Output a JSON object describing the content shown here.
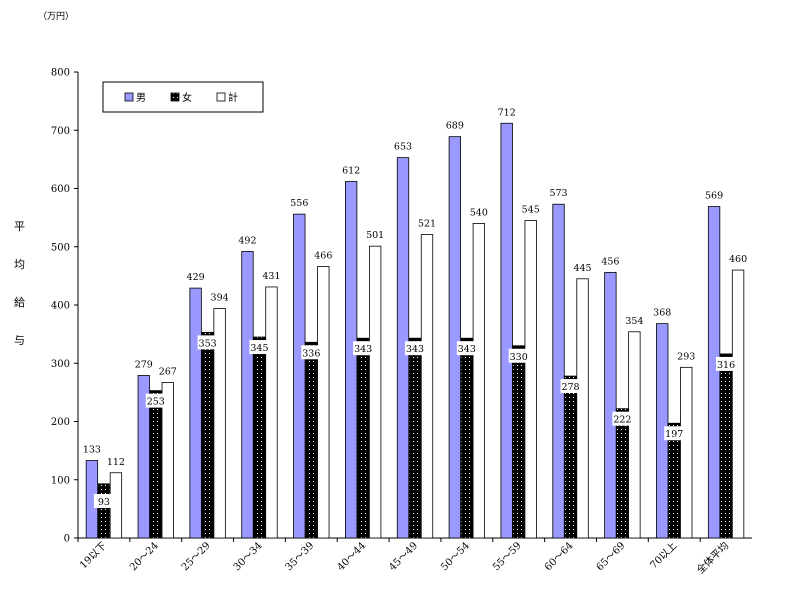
{
  "chart_data": {
    "type": "bar",
    "unit_label": "（万円）",
    "ylabel": "平均給与",
    "ylim": [
      0,
      800
    ],
    "yticks": [
      0,
      100,
      200,
      300,
      400,
      500,
      600,
      700,
      800
    ],
    "grid": false,
    "legend_position": "top-left",
    "categories": [
      "19以下",
      "20～24",
      "25～29",
      "30～34",
      "35～39",
      "40～44",
      "45～49",
      "50～54",
      "55～59",
      "60～64",
      "65～69",
      "70以上",
      "全体平均"
    ],
    "series": [
      {
        "name": "男",
        "color": "#9999ff",
        "values": [
          133,
          279,
          429,
          492,
          556,
          612,
          653,
          689,
          712,
          573,
          456,
          368,
          569
        ]
      },
      {
        "name": "女",
        "color": "#000000",
        "values": [
          93,
          253,
          353,
          345,
          336,
          343,
          343,
          343,
          330,
          278,
          222,
          197,
          316
        ]
      },
      {
        "name": "計",
        "color": "#ffffff",
        "values": [
          112,
          267,
          394,
          431,
          466,
          501,
          521,
          540,
          545,
          445,
          354,
          293,
          460
        ]
      }
    ]
  }
}
